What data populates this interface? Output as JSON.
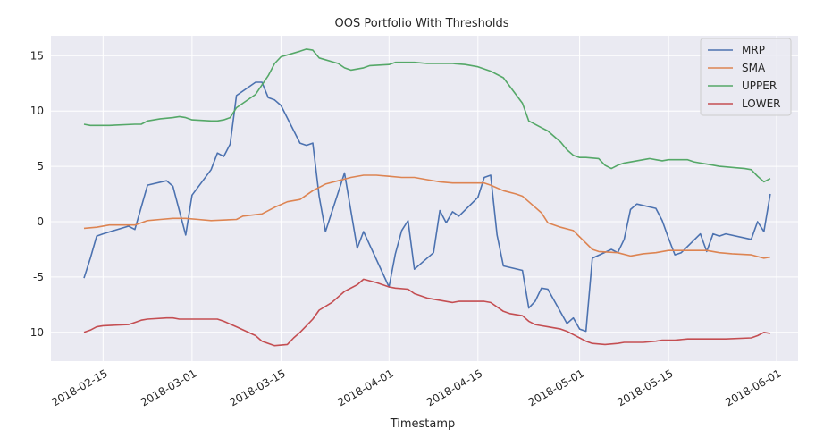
{
  "chart_data": {
    "type": "line",
    "title": "OOS Portfolio With Thresholds",
    "xlabel": "Timestamp",
    "ylabel": "",
    "xlim": [
      -4,
      107
    ],
    "ylim": [
      -12.6,
      16.8
    ],
    "grid": true,
    "legend_position": "top-right",
    "x_ticks": [
      {
        "label": "2018-02-15",
        "x": 3
      },
      {
        "label": "2018-03-01",
        "x": 17
      },
      {
        "label": "2018-03-15",
        "x": 31
      },
      {
        "label": "2018-04-01",
        "x": 48
      },
      {
        "label": "2018-04-15",
        "x": 62
      },
      {
        "label": "2018-05-01",
        "x": 78
      },
      {
        "label": "2018-05-15",
        "x": 92
      },
      {
        "label": "2018-06-01",
        "x": 109
      }
    ],
    "y_ticks": [
      -10,
      -5,
      0,
      5,
      10,
      15
    ],
    "series": [
      {
        "name": "MRP",
        "color": "#4c72b0",
        "points": [
          [
            0,
            -5.1
          ],
          [
            1,
            -3.3
          ],
          [
            2,
            -1.3
          ],
          [
            3,
            -1.1
          ],
          [
            7,
            -0.4
          ],
          [
            8,
            -0.7
          ],
          [
            10,
            3.3
          ],
          [
            13,
            3.7
          ],
          [
            14,
            3.2
          ],
          [
            16,
            -1.2
          ],
          [
            17,
            2.4
          ],
          [
            20,
            4.7
          ],
          [
            21,
            6.2
          ],
          [
            22,
            5.9
          ],
          [
            23,
            7.0
          ],
          [
            24,
            11.4
          ],
          [
            27,
            12.6
          ],
          [
            28,
            12.6
          ],
          [
            29,
            11.2
          ],
          [
            30,
            11.0
          ],
          [
            31,
            10.5
          ],
          [
            34,
            7.1
          ],
          [
            35,
            6.9
          ],
          [
            36,
            7.1
          ],
          [
            37,
            2.3
          ],
          [
            38,
            -0.9
          ],
          [
            41,
            4.4
          ],
          [
            43,
            -2.4
          ],
          [
            44,
            -0.9
          ],
          [
            48,
            -5.9
          ],
          [
            49,
            -2.9
          ],
          [
            50,
            -0.8
          ],
          [
            51,
            0.1
          ],
          [
            52,
            -4.3
          ],
          [
            55,
            -2.8
          ],
          [
            56,
            1.0
          ],
          [
            57,
            -0.1
          ],
          [
            58,
            0.9
          ],
          [
            59,
            0.5
          ],
          [
            62,
            2.2
          ],
          [
            63,
            4.0
          ],
          [
            64,
            4.2
          ],
          [
            65,
            -1.2
          ],
          [
            66,
            -4.0
          ],
          [
            69,
            -4.4
          ],
          [
            70,
            -7.8
          ],
          [
            71,
            -7.2
          ],
          [
            72,
            -6.0
          ],
          [
            73,
            -6.1
          ],
          [
            76,
            -9.2
          ],
          [
            77,
            -8.7
          ],
          [
            78,
            -9.7
          ],
          [
            79,
            -9.9
          ],
          [
            80,
            -3.3
          ],
          [
            83,
            -2.5
          ],
          [
            84,
            -2.8
          ],
          [
            85,
            -1.6
          ],
          [
            86,
            1.1
          ],
          [
            87,
            1.6
          ],
          [
            90,
            1.2
          ],
          [
            91,
            0.1
          ],
          [
            92,
            -1.5
          ],
          [
            93,
            -3.0
          ],
          [
            94,
            -2.8
          ],
          [
            97,
            -1.1
          ],
          [
            98,
            -2.7
          ],
          [
            99,
            -1.1
          ],
          [
            100,
            -1.3
          ],
          [
            101,
            -1.1
          ],
          [
            105,
            -1.6
          ],
          [
            106,
            0.0
          ],
          [
            107,
            -0.9
          ],
          [
            108,
            2.5
          ]
        ]
      },
      {
        "name": "SMA",
        "color": "#dd8452",
        "points": [
          [
            0,
            -0.6
          ],
          [
            2,
            -0.5
          ],
          [
            4,
            -0.3
          ],
          [
            8,
            -0.3
          ],
          [
            10,
            0.1
          ],
          [
            12,
            0.2
          ],
          [
            14,
            0.3
          ],
          [
            16,
            0.3
          ],
          [
            18,
            0.2
          ],
          [
            20,
            0.1
          ],
          [
            24,
            0.2
          ],
          [
            25,
            0.5
          ],
          [
            28,
            0.7
          ],
          [
            30,
            1.3
          ],
          [
            32,
            1.8
          ],
          [
            34,
            2.0
          ],
          [
            36,
            2.8
          ],
          [
            38,
            3.4
          ],
          [
            40,
            3.7
          ],
          [
            42,
            4.0
          ],
          [
            44,
            4.2
          ],
          [
            46,
            4.2
          ],
          [
            48,
            4.1
          ],
          [
            50,
            4.0
          ],
          [
            52,
            4.0
          ],
          [
            54,
            3.8
          ],
          [
            56,
            3.6
          ],
          [
            58,
            3.5
          ],
          [
            60,
            3.5
          ],
          [
            62,
            3.5
          ],
          [
            63,
            3.5
          ],
          [
            64,
            3.3
          ],
          [
            66,
            2.8
          ],
          [
            68,
            2.5
          ],
          [
            69,
            2.3
          ],
          [
            70,
            1.8
          ],
          [
            72,
            0.8
          ],
          [
            73,
            -0.1
          ],
          [
            75,
            -0.5
          ],
          [
            77,
            -0.8
          ],
          [
            80,
            -2.5
          ],
          [
            81,
            -2.7
          ],
          [
            84,
            -2.8
          ],
          [
            86,
            -3.1
          ],
          [
            88,
            -2.9
          ],
          [
            90,
            -2.8
          ],
          [
            92,
            -2.6
          ],
          [
            95,
            -2.6
          ],
          [
            98,
            -2.6
          ],
          [
            100,
            -2.8
          ],
          [
            102,
            -2.9
          ],
          [
            105,
            -3.0
          ],
          [
            107,
            -3.3
          ],
          [
            108,
            -3.2
          ]
        ]
      },
      {
        "name": "UPPER",
        "color": "#55a868",
        "points": [
          [
            0,
            8.8
          ],
          [
            1,
            8.7
          ],
          [
            4,
            8.7
          ],
          [
            8,
            8.8
          ],
          [
            9,
            8.8
          ],
          [
            10,
            9.1
          ],
          [
            12,
            9.3
          ],
          [
            14,
            9.4
          ],
          [
            15,
            9.5
          ],
          [
            16,
            9.4
          ],
          [
            17,
            9.2
          ],
          [
            20,
            9.1
          ],
          [
            21,
            9.1
          ],
          [
            22,
            9.2
          ],
          [
            23,
            9.4
          ],
          [
            24,
            10.3
          ],
          [
            27,
            11.5
          ],
          [
            29,
            13.2
          ],
          [
            30,
            14.3
          ],
          [
            31,
            14.9
          ],
          [
            34,
            15.4
          ],
          [
            35,
            15.6
          ],
          [
            36,
            15.5
          ],
          [
            37,
            14.8
          ],
          [
            40,
            14.3
          ],
          [
            41,
            13.9
          ],
          [
            42,
            13.7
          ],
          [
            44,
            13.9
          ],
          [
            45,
            14.1
          ],
          [
            48,
            14.2
          ],
          [
            49,
            14.4
          ],
          [
            51,
            14.4
          ],
          [
            52,
            14.4
          ],
          [
            54,
            14.3
          ],
          [
            58,
            14.3
          ],
          [
            60,
            14.2
          ],
          [
            62,
            14.0
          ],
          [
            64,
            13.6
          ],
          [
            66,
            13.0
          ],
          [
            69,
            10.7
          ],
          [
            70,
            9.1
          ],
          [
            72,
            8.5
          ],
          [
            73,
            8.2
          ],
          [
            75,
            7.2
          ],
          [
            76,
            6.5
          ],
          [
            77,
            6.0
          ],
          [
            78,
            5.8
          ],
          [
            79,
            5.8
          ],
          [
            81,
            5.7
          ],
          [
            82,
            5.1
          ],
          [
            83,
            4.8
          ],
          [
            84,
            5.1
          ],
          [
            85,
            5.3
          ],
          [
            87,
            5.5
          ],
          [
            89,
            5.7
          ],
          [
            90,
            5.6
          ],
          [
            91,
            5.5
          ],
          [
            92,
            5.6
          ],
          [
            95,
            5.6
          ],
          [
            96,
            5.4
          ],
          [
            97,
            5.3
          ],
          [
            98,
            5.2
          ],
          [
            100,
            5.0
          ],
          [
            102,
            4.9
          ],
          [
            104,
            4.8
          ],
          [
            105,
            4.7
          ],
          [
            106,
            4.1
          ],
          [
            107,
            3.6
          ],
          [
            108,
            3.9
          ]
        ]
      },
      {
        "name": "LOWER",
        "color": "#c44e52",
        "points": [
          [
            0,
            -10.0
          ],
          [
            1,
            -9.8
          ],
          [
            2,
            -9.5
          ],
          [
            3,
            -9.4
          ],
          [
            7,
            -9.3
          ],
          [
            8,
            -9.1
          ],
          [
            9,
            -8.9
          ],
          [
            10,
            -8.8
          ],
          [
            13,
            -8.7
          ],
          [
            14,
            -8.7
          ],
          [
            15,
            -8.8
          ],
          [
            16,
            -8.8
          ],
          [
            20,
            -8.8
          ],
          [
            21,
            -8.8
          ],
          [
            22,
            -9.0
          ],
          [
            24,
            -9.5
          ],
          [
            27,
            -10.3
          ],
          [
            28,
            -10.8
          ],
          [
            30,
            -11.2
          ],
          [
            32,
            -11.1
          ],
          [
            33,
            -10.5
          ],
          [
            34,
            -10.0
          ],
          [
            35,
            -9.4
          ],
          [
            36,
            -8.8
          ],
          [
            37,
            -8.0
          ],
          [
            39,
            -7.3
          ],
          [
            40,
            -6.8
          ],
          [
            41,
            -6.3
          ],
          [
            43,
            -5.7
          ],
          [
            44,
            -5.2
          ],
          [
            46,
            -5.5
          ],
          [
            48,
            -5.9
          ],
          [
            49,
            -6.0
          ],
          [
            51,
            -6.1
          ],
          [
            52,
            -6.5
          ],
          [
            54,
            -6.9
          ],
          [
            56,
            -7.1
          ],
          [
            58,
            -7.3
          ],
          [
            59,
            -7.2
          ],
          [
            62,
            -7.2
          ],
          [
            63,
            -7.2
          ],
          [
            64,
            -7.3
          ],
          [
            66,
            -8.1
          ],
          [
            67,
            -8.3
          ],
          [
            69,
            -8.5
          ],
          [
            70,
            -9.0
          ],
          [
            71,
            -9.3
          ],
          [
            72,
            -9.4
          ],
          [
            73,
            -9.5
          ],
          [
            75,
            -9.7
          ],
          [
            76,
            -9.9
          ],
          [
            77,
            -10.2
          ],
          [
            79,
            -10.8
          ],
          [
            80,
            -11.0
          ],
          [
            82,
            -11.1
          ],
          [
            84,
            -11.0
          ],
          [
            85,
            -10.9
          ],
          [
            86,
            -10.9
          ],
          [
            88,
            -10.9
          ],
          [
            90,
            -10.8
          ],
          [
            91,
            -10.7
          ],
          [
            93,
            -10.7
          ],
          [
            95,
            -10.6
          ],
          [
            100,
            -10.6
          ],
          [
            101,
            -10.6
          ],
          [
            105,
            -10.5
          ],
          [
            106,
            -10.3
          ],
          [
            107,
            -10.0
          ],
          [
            108,
            -10.1
          ]
        ]
      }
    ]
  }
}
